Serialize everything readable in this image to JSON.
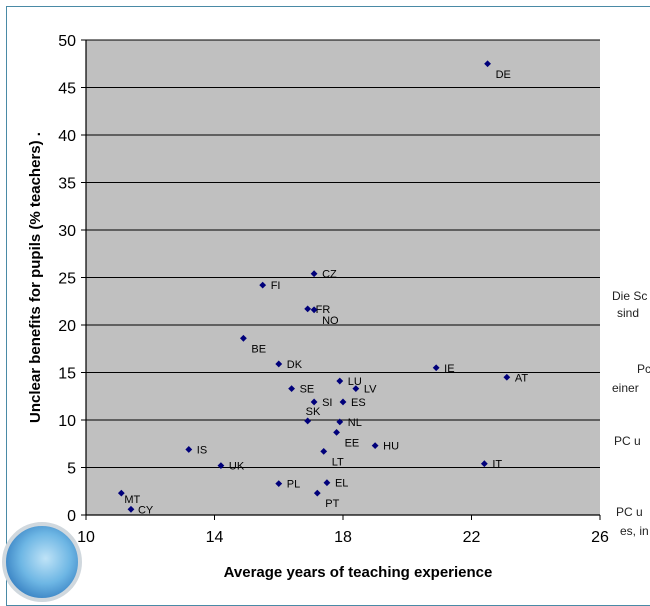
{
  "chart_data": {
    "type": "scatter",
    "xlabel": "Average years of teaching experience",
    "ylabel": "Unclear benefits for pupils (% teachers)  .",
    "xlim": [
      10,
      26
    ],
    "ylim": [
      0,
      50
    ],
    "xticks": [
      10,
      14,
      18,
      22,
      26
    ],
    "xtick_labels": [
      "10",
      "14",
      "18",
      "22",
      "26"
    ],
    "yticks": [
      0,
      5,
      10,
      15,
      20,
      25,
      30,
      35,
      40,
      45,
      50
    ],
    "grid": "horizontal",
    "plot_background": "#c0c0c0",
    "marker_color": "#00007a",
    "points": [
      {
        "label": "DE",
        "x": 22.5,
        "y": 47.5
      },
      {
        "label": "CZ",
        "x": 17.1,
        "y": 25.4
      },
      {
        "label": "FI",
        "x": 15.5,
        "y": 24.2
      },
      {
        "label": "FR",
        "x": 16.9,
        "y": 21.7
      },
      {
        "label": "NO",
        "x": 17.1,
        "y": 21.6
      },
      {
        "label": "BE",
        "x": 14.9,
        "y": 18.6
      },
      {
        "label": "DK",
        "x": 16.0,
        "y": 15.9
      },
      {
        "label": "IE",
        "x": 20.9,
        "y": 15.5
      },
      {
        "label": "AT",
        "x": 23.1,
        "y": 14.5
      },
      {
        "label": "LU",
        "x": 17.9,
        "y": 14.1
      },
      {
        "label": "SE",
        "x": 16.4,
        "y": 13.3
      },
      {
        "label": "LV",
        "x": 18.4,
        "y": 13.3
      },
      {
        "label": "SI",
        "x": 17.1,
        "y": 11.9
      },
      {
        "label": "ES",
        "x": 18.0,
        "y": 11.9
      },
      {
        "label": "SK",
        "x": 16.9,
        "y": 9.9
      },
      {
        "label": "NL",
        "x": 17.9,
        "y": 9.8
      },
      {
        "label": "EE",
        "x": 17.8,
        "y": 8.7
      },
      {
        "label": "HU",
        "x": 19.0,
        "y": 7.3
      },
      {
        "label": "IS",
        "x": 13.2,
        "y": 6.9
      },
      {
        "label": "LT",
        "x": 17.4,
        "y": 6.7
      },
      {
        "label": "UK",
        "x": 14.2,
        "y": 5.2
      },
      {
        "label": "IT",
        "x": 22.4,
        "y": 5.4
      },
      {
        "label": "PL",
        "x": 16.0,
        "y": 3.3
      },
      {
        "label": "EL",
        "x": 17.5,
        "y": 3.4
      },
      {
        "label": "PT",
        "x": 17.2,
        "y": 2.3
      },
      {
        "label": "MT",
        "x": 11.1,
        "y": 2.3
      },
      {
        "label": "CY",
        "x": 11.4,
        "y": 0.6
      }
    ]
  },
  "side_text": [
    "Die Sc",
    "sind",
    "Pc",
    "einer",
    "PC u",
    "PC u",
    "es, in"
  ]
}
